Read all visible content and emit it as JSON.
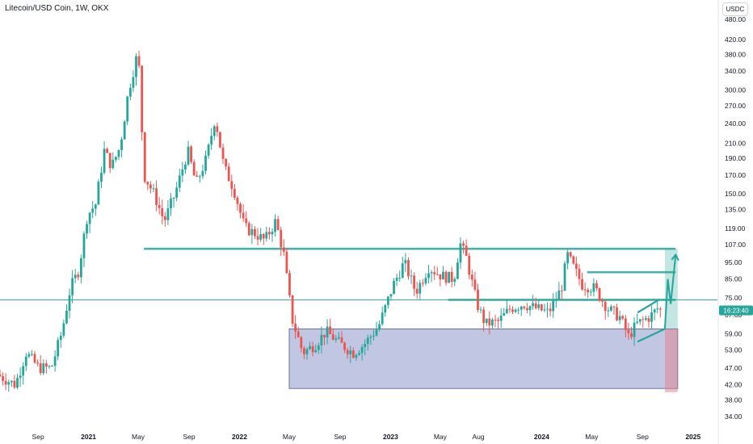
{
  "header": {
    "title": "Litecoin/USD Coin, 1W, OKX",
    "currency": "USDC"
  },
  "price_badge": {
    "text": "16:23:40",
    "value": 69
  },
  "colors": {
    "up": "#26a69a",
    "down": "#ef5350",
    "level": "#26a69a",
    "support_zone": "#5b6bb5",
    "target_zone": "#26a69a",
    "stop_zone": "#e0868f",
    "projection": "#26a69a",
    "price_line": "#26a69a"
  },
  "chart_data": {
    "type": "candlestick",
    "title": "Litecoin/USD Coin, 1W, OKX",
    "y_scale": "log",
    "ylim": [
      32,
      500
    ],
    "x_start": "2020-06-01",
    "x_end": "2025-03-01",
    "x_tick_labels": [
      {
        "label": "Sep",
        "date": "2020-09-01"
      },
      {
        "label": "2021",
        "date": "2021-01-01"
      },
      {
        "label": "May",
        "date": "2021-05-01"
      },
      {
        "label": "Sep",
        "date": "2021-09-01"
      },
      {
        "label": "2022",
        "date": "2022-01-01"
      },
      {
        "label": "May",
        "date": "2022-05-01"
      },
      {
        "label": "Sep",
        "date": "2022-09-01"
      },
      {
        "label": "2023",
        "date": "2023-01-01"
      },
      {
        "label": "May",
        "date": "2023-05-01"
      },
      {
        "label": "Aug",
        "date": "2023-08-01"
      },
      {
        "label": "2024",
        "date": "2024-01-01"
      },
      {
        "label": "May",
        "date": "2024-05-01"
      },
      {
        "label": "Sep",
        "date": "2024-09-01"
      },
      {
        "label": "2025",
        "date": "2025-01-01"
      }
    ],
    "y_tick_labels": [
      "480.00",
      "420.00",
      "380.00",
      "340.00",
      "300.00",
      "270.00",
      "240.00",
      "210.00",
      "190.00",
      "170.00",
      "150.00",
      "135.00",
      "119.00",
      "107.00",
      "95.00",
      "85.00",
      "75.00",
      "67.00",
      "59.00",
      "53.00",
      "47.00",
      "42.00",
      "38.00",
      "34.00"
    ],
    "y_ticks": [
      480,
      420,
      380,
      340,
      300,
      270,
      240,
      210,
      190,
      170,
      150,
      135,
      119,
      107,
      95,
      85,
      75,
      67,
      59,
      53,
      47,
      42,
      38,
      34
    ],
    "price_path": [
      [
        "2020-06-01",
        45
      ],
      [
        "2020-07-15",
        42
      ],
      [
        "2020-08-10",
        52
      ],
      [
        "2020-09-10",
        47
      ],
      [
        "2020-10-10",
        47
      ],
      [
        "2020-11-05",
        60
      ],
      [
        "2020-11-25",
        80
      ],
      [
        "2020-12-15",
        90
      ],
      [
        "2021-01-05",
        130
      ],
      [
        "2021-01-25",
        140
      ],
      [
        "2021-02-15",
        200
      ],
      [
        "2021-03-05",
        180
      ],
      [
        "2021-03-25",
        205
      ],
      [
        "2021-04-15",
        300
      ],
      [
        "2021-05-08",
        390
      ],
      [
        "2021-05-22",
        170
      ],
      [
        "2021-06-15",
        150
      ],
      [
        "2021-07-10",
        125
      ],
      [
        "2021-08-05",
        150
      ],
      [
        "2021-09-05",
        200
      ],
      [
        "2021-09-25",
        160
      ],
      [
        "2021-10-20",
        190
      ],
      [
        "2021-11-10",
        250
      ],
      [
        "2021-12-01",
        180
      ],
      [
        "2021-12-25",
        155
      ],
      [
        "2022-01-20",
        120
      ],
      [
        "2022-02-15",
        115
      ],
      [
        "2022-03-10",
        110
      ],
      [
        "2022-04-05",
        125
      ],
      [
        "2022-04-25",
        100
      ],
      [
        "2022-05-15",
        65
      ],
      [
        "2022-06-10",
        52
      ],
      [
        "2022-07-10",
        55
      ],
      [
        "2022-08-05",
        60
      ],
      [
        "2022-09-10",
        55
      ],
      [
        "2022-10-10",
        52
      ],
      [
        "2022-11-05",
        55
      ],
      [
        "2022-12-10",
        62
      ],
      [
        "2023-01-15",
        82
      ],
      [
        "2023-02-10",
        95
      ],
      [
        "2023-03-10",
        78
      ],
      [
        "2023-04-10",
        92
      ],
      [
        "2023-05-10",
        87
      ],
      [
        "2023-06-10",
        85
      ],
      [
        "2023-06-25",
        108
      ],
      [
        "2023-07-10",
        98
      ],
      [
        "2023-08-05",
        72
      ],
      [
        "2023-08-25",
        63
      ],
      [
        "2023-09-25",
        64
      ],
      [
        "2023-10-25",
        70
      ],
      [
        "2023-11-25",
        72
      ],
      [
        "2023-12-25",
        70
      ],
      [
        "2024-01-25",
        68
      ],
      [
        "2024-02-25",
        80
      ],
      [
        "2024-03-10",
        100
      ],
      [
        "2024-03-25",
        92
      ],
      [
        "2024-04-15",
        82
      ],
      [
        "2024-05-15",
        80
      ],
      [
        "2024-06-15",
        70
      ],
      [
        "2024-07-15",
        66
      ],
      [
        "2024-08-05",
        58
      ],
      [
        "2024-08-25",
        63
      ],
      [
        "2024-09-25",
        66
      ],
      [
        "2024-10-15",
        70
      ],
      [
        "2024-10-20",
        69
      ]
    ],
    "levels": [
      {
        "price": 104,
        "from": "2021-05-15",
        "to": "2024-11-20"
      },
      {
        "price": 74,
        "from": "2020-06-01",
        "to": "2025-03-01",
        "style": "thin"
      },
      {
        "price": 74,
        "from": "2023-05-20",
        "to": "2024-11-20"
      },
      {
        "price": 89,
        "from": "2024-04-20",
        "to": "2024-11-20"
      }
    ],
    "zones": [
      {
        "name": "support",
        "top": 61,
        "bottom": 41,
        "from": "2022-05-01",
        "to": "2024-11-25"
      },
      {
        "name": "target",
        "top": 104,
        "bottom": 61,
        "from": "2024-10-25",
        "to": "2024-11-25"
      },
      {
        "name": "stop",
        "top": 61,
        "bottom": 40,
        "from": "2024-10-25",
        "to": "2024-11-25"
      }
    ],
    "wedge": {
      "upper": [
        [
          "2024-08-20",
          68
        ],
        [
          "2024-10-10",
          74
        ]
      ],
      "lower": [
        [
          "2024-08-20",
          56
        ],
        [
          "2024-10-25",
          61
        ]
      ]
    },
    "projection": [
      [
        "2024-10-25",
        61
      ],
      [
        "2024-11-01",
        85
      ],
      [
        "2024-11-08",
        72
      ],
      [
        "2024-11-20",
        100
      ]
    ]
  }
}
